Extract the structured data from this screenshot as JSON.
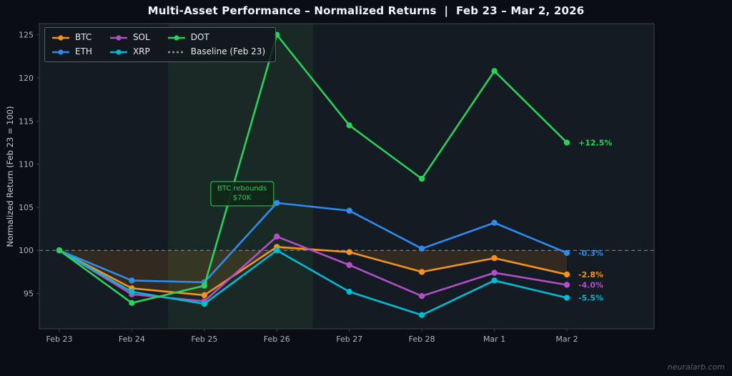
{
  "header": {
    "title": "Multi-Asset Performance – Normalized Returns  |  Feb 23 – Mar 2, 2026"
  },
  "watermark": "neuralarb.com",
  "chart_data": {
    "type": "line",
    "title": "Multi-Asset Performance – Normalized Returns | Feb 23 – Mar 2, 2026",
    "xlabel": "",
    "ylabel": "Normalized Return (Feb 23 = 100)",
    "categories": [
      "Feb 23",
      "Feb 24",
      "Feb 25",
      "Feb 26",
      "Feb 27",
      "Feb 28",
      "Mar 1",
      "Mar 2"
    ],
    "yticks": [
      95,
      100,
      105,
      110,
      115,
      120,
      125
    ],
    "ylim": [
      90.9,
      126.3
    ],
    "grid": false,
    "legend_position": "upper-left",
    "series": [
      {
        "name": "BTC",
        "color": "#f7931a",
        "end_label": "-2.8%",
        "values": [
          100,
          95.6,
          94.8,
          100.4,
          99.8,
          97.5,
          99.1,
          97.2
        ]
      },
      {
        "name": "ETH",
        "color": "#2e8bf0",
        "end_label": "-0.3%",
        "values": [
          100,
          96.5,
          96.3,
          105.5,
          104.6,
          100.2,
          103.2,
          99.7
        ]
      },
      {
        "name": "SOL",
        "color": "#b14fc9",
        "end_label": "-4.0%",
        "values": [
          100,
          94.9,
          94.1,
          101.6,
          98.3,
          94.7,
          97.4,
          96.0
        ]
      },
      {
        "name": "XRP",
        "color": "#00bcd4",
        "end_label": "-5.5%",
        "values": [
          100,
          95.2,
          93.8,
          100.0,
          95.2,
          92.5,
          96.5,
          94.5
        ]
      },
      {
        "name": "DOT",
        "color": "#2bd158",
        "end_label": "+12.5%",
        "values": [
          100,
          93.9,
          95.9,
          125.0,
          114.5,
          108.3,
          120.8,
          112.5
        ]
      }
    ],
    "baseline": {
      "label": "Baseline (Feb 23)",
      "value": 100,
      "color": "#8b939b"
    },
    "highlight_band": {
      "from_index": 1.5,
      "to_index": 3.5,
      "color": "rgba(63,185,80,0.09)"
    },
    "btc_fill_color": "rgba(247,147,26,0.13)",
    "annotation": {
      "lines": [
        "BTC rebounds",
        "$70K"
      ],
      "x_index": 2.52,
      "y_value": 106.6,
      "color": "#2bd158"
    },
    "colors": {
      "background": "#0a0d13",
      "panel": "#151b23",
      "border": "#3c434d",
      "tick_text": "#adb5bd",
      "title_text": "#f2f5f7"
    }
  }
}
